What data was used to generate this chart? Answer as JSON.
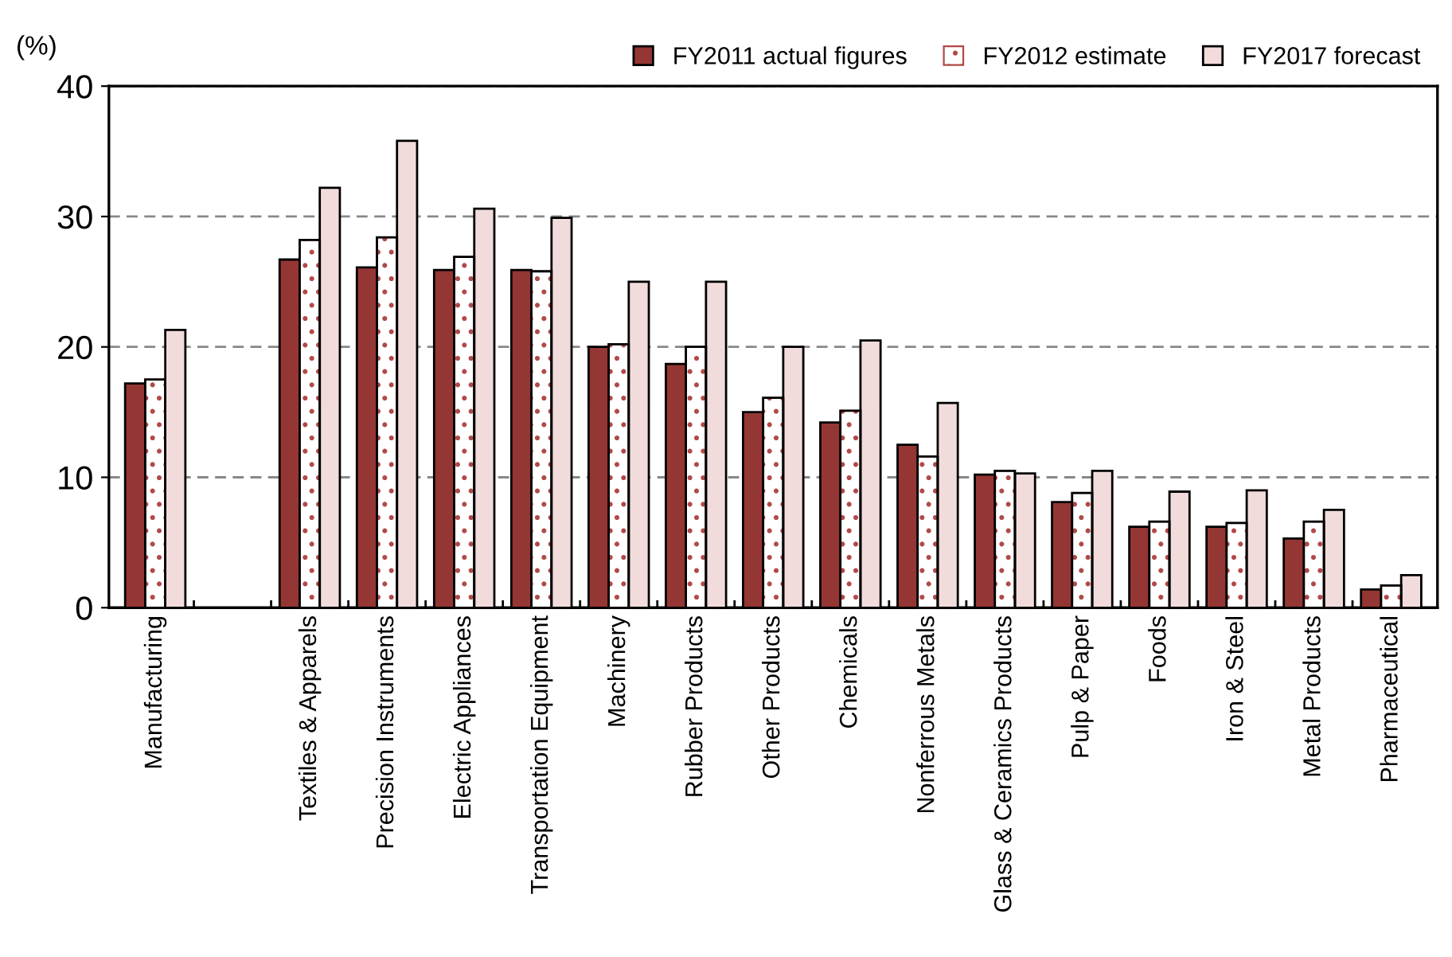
{
  "chart_data": {
    "type": "bar",
    "ylabel": "(%)",
    "categories": [
      "Manufacturing",
      null,
      "Textiles & Apparels",
      "Precision Instruments",
      "Electric Appliances",
      "Transportation Equipment",
      "Machinery",
      "Rubber Products",
      "Other Products",
      "Chemicals",
      "Nonferrous Metals",
      "Glass & Ceramics Products",
      "Pulp & Paper",
      "Foods",
      "Iron & Steel",
      "Metal Products",
      "Pharmaceutical"
    ],
    "series": [
      {
        "name": "FY2011 actual figures",
        "color": "#943634",
        "values": [
          17.2,
          null,
          26.7,
          26.1,
          25.9,
          25.9,
          20.0,
          18.7,
          15.0,
          14.2,
          12.5,
          10.2,
          8.1,
          6.2,
          6.2,
          5.3,
          1.4
        ]
      },
      {
        "name": "FY2012 estimate",
        "color": "#b04a48",
        "values": [
          17.5,
          null,
          28.2,
          28.4,
          26.9,
          25.8,
          20.2,
          20.0,
          16.1,
          15.1,
          11.6,
          10.5,
          8.8,
          6.6,
          6.5,
          6.6,
          1.7
        ]
      },
      {
        "name": "FY2017 forecast",
        "color": "#f2dcdb",
        "values": [
          21.3,
          null,
          32.2,
          35.8,
          30.6,
          29.9,
          25.0,
          25.0,
          20.0,
          20.5,
          15.7,
          10.3,
          10.5,
          8.9,
          9.0,
          7.5,
          2.5
        ]
      }
    ],
    "ylim": [
      0,
      40
    ],
    "yticks": [
      0,
      10,
      20,
      30,
      40
    ],
    "grid": "y",
    "legend": "top right"
  }
}
